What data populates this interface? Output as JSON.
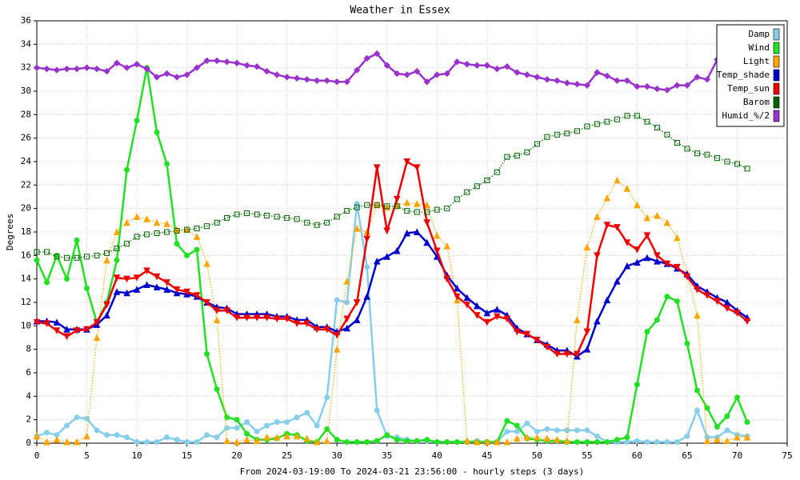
{
  "chart_data": {
    "type": "line",
    "title": "Weather in Essex",
    "xlabel": "From 2024-03-19:00 To 2024-03-21 23:56:00 - hourly steps (3 days)",
    "ylabel": "Degrees",
    "x": [
      0,
      1,
      2,
      3,
      4,
      5,
      6,
      7,
      8,
      9,
      10,
      11,
      12,
      13,
      14,
      15,
      16,
      17,
      18,
      19,
      20,
      21,
      22,
      23,
      24,
      25,
      26,
      27,
      28,
      29,
      30,
      31,
      32,
      33,
      34,
      35,
      36,
      37,
      38,
      39,
      40,
      41,
      42,
      43,
      44,
      45,
      46,
      47,
      48,
      49,
      50,
      51,
      52,
      53,
      54,
      55,
      56,
      57,
      58,
      59,
      60,
      61,
      62,
      63,
      64,
      65,
      66,
      67,
      68,
      69,
      70,
      71
    ],
    "xlim": [
      0,
      75
    ],
    "xticks": [
      0,
      5,
      10,
      15,
      20,
      25,
      30,
      35,
      40,
      45,
      50,
      55,
      60,
      65,
      70,
      75
    ],
    "ylim": [
      0,
      36
    ],
    "yticks": [
      0,
      2,
      4,
      6,
      8,
      10,
      12,
      14,
      16,
      18,
      20,
      22,
      24,
      26,
      28,
      30,
      32,
      34,
      36
    ],
    "grid": true,
    "legend": "upper right",
    "series": [
      {
        "name": "Damp",
        "color": "#87ceeb",
        "marker": "circle",
        "line_style": "solid",
        "values": [
          0.6,
          0.9,
          0.7,
          1.5,
          2.2,
          2.1,
          1.1,
          0.7,
          0.7,
          0.5,
          0.1,
          0.1,
          0.1,
          0.5,
          0.3,
          0.1,
          0.1,
          0.7,
          0.5,
          1.3,
          1.3,
          1.8,
          1.0,
          1.5,
          1.8,
          1.8,
          2.2,
          2.6,
          1.5,
          3.9,
          12.2,
          12.0,
          20.4,
          15.0,
          2.8,
          0.6,
          0.5,
          0.3,
          0.2,
          0.2,
          0.1,
          0.1,
          0.1,
          0.1,
          0.2,
          0.1,
          0.1,
          1.0,
          1.0,
          1.7,
          1.0,
          1.2,
          1.1,
          1.1,
          1.1,
          1.1,
          0.6,
          0.1,
          0.1,
          0.1,
          0.2,
          0.1,
          0.1,
          0.1,
          0.1,
          0.6,
          2.8,
          0.5,
          0.5,
          1.1,
          0.7,
          0.6
        ]
      },
      {
        "name": "Wind",
        "color": "#22e022",
        "marker": "circle",
        "line_style": "solid",
        "values": [
          15.6,
          13.7,
          16.0,
          14.0,
          17.3,
          13.2,
          10.3,
          12.0,
          15.6,
          23.3,
          27.5,
          32.0,
          26.5,
          23.8,
          17.0,
          16.0,
          16.5,
          7.6,
          4.6,
          2.2,
          2.0,
          0.8,
          0.3,
          0.3,
          0.4,
          0.8,
          0.7,
          0.2,
          0.1,
          1.2,
          0.3,
          0.1,
          0.1,
          0.1,
          0.2,
          0.7,
          0.3,
          0.2,
          0.2,
          0.3,
          0.1,
          0.1,
          0.1,
          0.1,
          0.1,
          0.1,
          0.1,
          1.9,
          1.5,
          0.4,
          0.3,
          0.2,
          0.2,
          0.1,
          0.1,
          0.1,
          0.1,
          0.1,
          0.3,
          0.5,
          5.0,
          9.5,
          10.5,
          12.5,
          12.1,
          8.5,
          4.5,
          3.0,
          1.4,
          2.3,
          3.9,
          1.8
        ]
      },
      {
        "name": "Light",
        "color": "#ffa500",
        "marker": "triangle-up",
        "line_style": "dotted",
        "values": [
          0.6,
          0.1,
          0.3,
          0.1,
          0.1,
          0.6,
          9.0,
          15.6,
          18.0,
          18.8,
          19.3,
          19.1,
          18.8,
          18.7,
          18.2,
          18.2,
          17.6,
          15.3,
          10.5,
          0.2,
          0.1,
          0.3,
          0.2,
          0.5,
          0.5,
          0.6,
          0.6,
          0.4,
          0.1,
          0.2,
          8.0,
          13.8,
          18.3,
          18.0,
          20.3,
          20.1,
          20.3,
          20.5,
          20.4,
          20.3,
          17.7,
          16.8,
          12.2,
          0.2,
          0.1,
          0.1,
          0.1,
          0.1,
          0.4,
          0.5,
          0.5,
          0.4,
          0.3,
          0.2,
          10.5,
          16.7,
          19.3,
          20.9,
          22.4,
          21.7,
          20.3,
          19.2,
          19.4,
          18.8,
          17.5,
          14.5,
          10.9,
          0.2,
          0.3,
          0.2,
          0.5,
          0.5
        ]
      },
      {
        "name": "Temp_shade",
        "color": "#0000cc",
        "marker": "triangle-up",
        "line_style": "solid",
        "values": [
          10.4,
          10.4,
          10.3,
          9.7,
          9.7,
          9.7,
          10.1,
          10.9,
          12.9,
          12.8,
          13.1,
          13.5,
          13.3,
          13.1,
          12.8,
          12.7,
          12.5,
          12.0,
          11.6,
          11.5,
          11.0,
          11.0,
          11.0,
          11.0,
          10.8,
          10.8,
          10.5,
          10.5,
          9.9,
          9.9,
          9.5,
          9.8,
          10.5,
          12.5,
          15.5,
          15.9,
          16.4,
          17.9,
          18.0,
          17.1,
          15.9,
          14.3,
          13.2,
          12.4,
          11.7,
          11.1,
          11.4,
          10.9,
          9.8,
          9.3,
          8.8,
          8.4,
          7.9,
          7.9,
          7.4,
          8.0,
          10.4,
          12.2,
          13.8,
          15.1,
          15.4,
          15.8,
          15.5,
          15.3,
          14.9,
          14.4,
          13.4,
          12.9,
          12.4,
          12.0,
          11.3,
          10.7
        ]
      },
      {
        "name": "Temp_sun",
        "color": "#ee0000",
        "marker": "triangle-down",
        "line_style": "solid",
        "values": [
          10.3,
          10.2,
          9.6,
          9.1,
          9.6,
          9.7,
          10.3,
          11.8,
          14.1,
          14.0,
          14.1,
          14.7,
          14.2,
          13.7,
          13.1,
          12.9,
          12.6,
          12.0,
          11.3,
          11.3,
          10.7,
          10.7,
          10.7,
          10.7,
          10.6,
          10.6,
          10.2,
          10.2,
          9.7,
          9.7,
          9.2,
          10.6,
          12.0,
          17.4,
          23.5,
          18.1,
          20.8,
          24.0,
          23.5,
          18.8,
          16.4,
          14.0,
          12.5,
          11.8,
          10.9,
          10.3,
          10.8,
          10.6,
          9.5,
          9.3,
          8.8,
          8.2,
          7.6,
          7.6,
          7.6,
          9.5,
          16.0,
          18.6,
          18.4,
          17.1,
          16.5,
          17.7,
          16.0,
          15.3,
          15.0,
          14.2,
          13.1,
          12.6,
          12.1,
          11.5,
          11.1,
          10.4
        ]
      },
      {
        "name": "Barom",
        "color": "#006400",
        "marker": "square",
        "line_style": "dotted",
        "values": [
          16.3,
          16.3,
          15.9,
          15.8,
          15.8,
          15.9,
          16.0,
          16.2,
          16.6,
          17.0,
          17.6,
          17.8,
          17.9,
          18.0,
          18.1,
          18.2,
          18.3,
          18.5,
          18.8,
          19.2,
          19.5,
          19.6,
          19.5,
          19.4,
          19.3,
          19.2,
          19.1,
          18.8,
          18.6,
          18.8,
          19.3,
          19.8,
          20.1,
          20.3,
          20.3,
          20.2,
          20.2,
          19.8,
          19.7,
          19.7,
          19.9,
          20.0,
          20.8,
          21.4,
          21.9,
          22.4,
          23.1,
          24.4,
          24.5,
          24.8,
          25.5,
          26.1,
          26.3,
          26.4,
          26.6,
          27.0,
          27.2,
          27.4,
          27.6,
          27.9,
          27.9,
          27.4,
          26.9,
          26.3,
          25.6,
          25.1,
          24.7,
          24.6,
          24.3,
          24.0,
          23.8,
          23.4
        ]
      },
      {
        "name": "Humid_%/2",
        "color": "#9933cc",
        "marker": "diamond",
        "line_style": "solid",
        "values": [
          32.0,
          31.9,
          31.8,
          31.9,
          31.9,
          32.0,
          31.9,
          31.7,
          32.4,
          32.0,
          32.3,
          31.9,
          31.2,
          31.5,
          31.2,
          31.4,
          32.0,
          32.6,
          32.6,
          32.5,
          32.4,
          32.2,
          32.1,
          31.7,
          31.4,
          31.2,
          31.1,
          31.0,
          30.9,
          30.9,
          30.8,
          30.8,
          31.8,
          32.8,
          33.2,
          32.2,
          31.5,
          31.4,
          31.7,
          30.8,
          31.4,
          31.5,
          32.5,
          32.3,
          32.2,
          32.2,
          31.9,
          32.1,
          31.6,
          31.4,
          31.2,
          31.0,
          30.9,
          30.7,
          30.6,
          30.5,
          31.6,
          31.3,
          30.9,
          30.9,
          30.4,
          30.4,
          30.2,
          30.1,
          30.5,
          30.5,
          31.2,
          31.0,
          32.7,
          null,
          null,
          null
        ]
      }
    ]
  }
}
